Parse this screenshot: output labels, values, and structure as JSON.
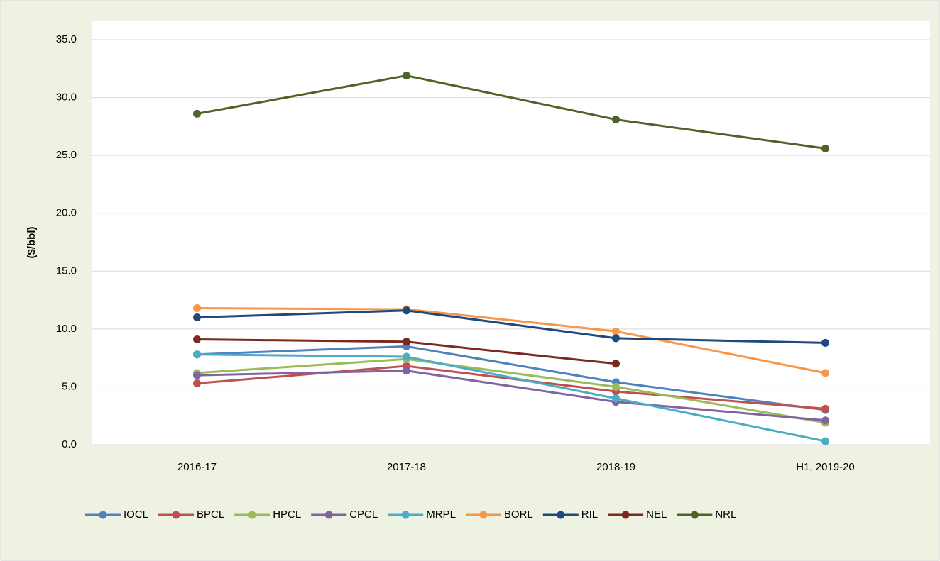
{
  "chart_data": {
    "type": "line",
    "y_label": "($/bbl)",
    "categories": [
      "2016-17",
      "2017-18",
      "2018-19",
      "H1, 2019-20"
    ],
    "ylim": [
      0,
      35
    ],
    "yticks": [
      {
        "value": 0,
        "label": "0.0"
      },
      {
        "value": 5,
        "label": "5.0"
      },
      {
        "value": 10,
        "label": "10.0"
      },
      {
        "value": 15,
        "label": "15.0"
      },
      {
        "value": 20,
        "label": "20.0"
      },
      {
        "value": 25,
        "label": "25.0"
      },
      {
        "value": 30,
        "label": "30.0"
      },
      {
        "value": 35,
        "label": "35.0"
      }
    ],
    "grid": true,
    "legend": "bottom",
    "series": [
      {
        "name": "IOCL",
        "color": "#4f81bd",
        "values": [
          7.8,
          8.5,
          5.4,
          3.0
        ]
      },
      {
        "name": "BPCL",
        "color": "#c0504d",
        "values": [
          5.3,
          6.8,
          4.6,
          3.1
        ]
      },
      {
        "name": "HPCL",
        "color": "#9bbb59",
        "values": [
          6.2,
          7.4,
          5.0,
          1.9
        ]
      },
      {
        "name": "CPCL",
        "color": "#8064a2",
        "values": [
          6.0,
          6.4,
          3.7,
          2.1
        ]
      },
      {
        "name": "MRPL",
        "color": "#4bacc6",
        "values": [
          7.8,
          7.6,
          4.0,
          0.3
        ]
      },
      {
        "name": "BORL",
        "color": "#f79646",
        "values": [
          11.8,
          11.7,
          9.8,
          6.2
        ]
      },
      {
        "name": "RIL",
        "color": "#1f497d",
        "values": [
          11.0,
          11.6,
          9.2,
          8.8
        ]
      },
      {
        "name": "NEL",
        "color": "#7b2a22",
        "values": [
          9.1,
          8.9,
          7.0,
          null
        ]
      },
      {
        "name": "NRL",
        "color": "#4f6228",
        "values": [
          28.6,
          31.9,
          28.1,
          25.6
        ]
      }
    ]
  }
}
